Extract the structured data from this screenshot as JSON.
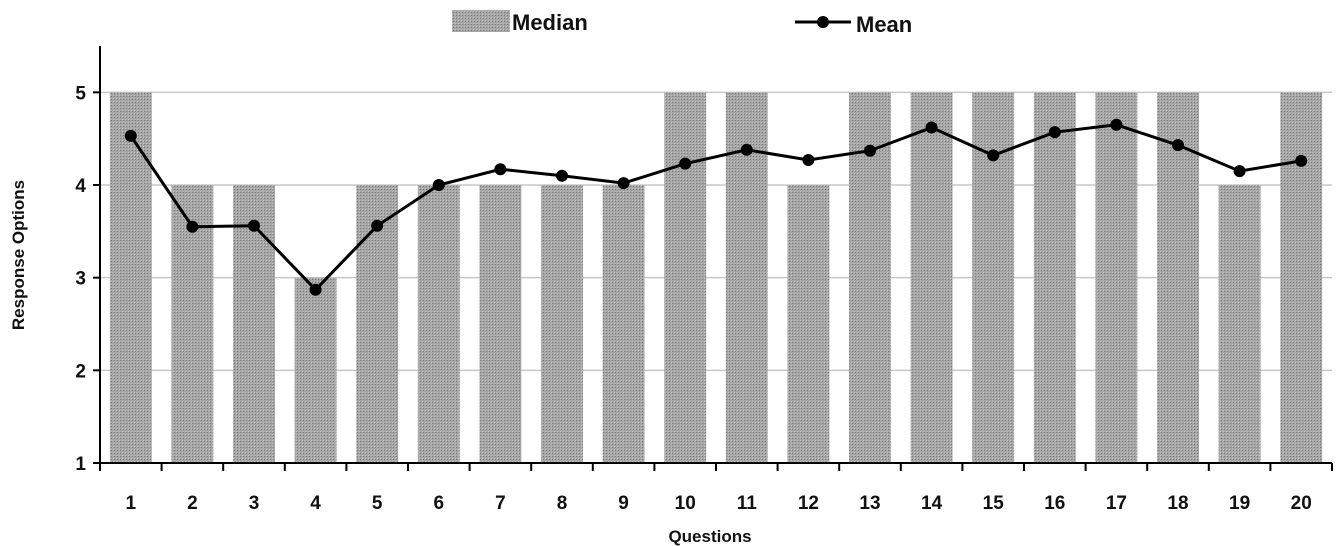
{
  "chart_data": {
    "type": "bar",
    "categories": [
      "1",
      "2",
      "3",
      "4",
      "5",
      "6",
      "7",
      "8",
      "9",
      "10",
      "11",
      "12",
      "13",
      "14",
      "15",
      "16",
      "17",
      "18",
      "19",
      "20"
    ],
    "series": [
      {
        "name": "Median",
        "type": "bar",
        "values": [
          5,
          4,
          4,
          3,
          4,
          4,
          4,
          4,
          4,
          5,
          5,
          4,
          5,
          5,
          5,
          5,
          5,
          5,
          4,
          5
        ]
      },
      {
        "name": "Mean",
        "type": "line",
        "values": [
          4.53,
          3.55,
          3.56,
          2.87,
          3.56,
          4.0,
          4.17,
          4.1,
          4.02,
          4.23,
          4.38,
          4.27,
          4.37,
          4.62,
          4.32,
          4.57,
          4.65,
          4.43,
          4.15,
          4.26
        ]
      }
    ],
    "xlabel": "Questions",
    "ylabel": "Response Options",
    "ylim": [
      1,
      5.5
    ],
    "yticks": [
      "1",
      "2",
      "3",
      "4",
      "5"
    ],
    "grid": "horizontal",
    "legend": "top-center",
    "colors": {
      "bar": "#a0a0a0",
      "line": "#000000",
      "grid": "#c8c8c8"
    }
  }
}
